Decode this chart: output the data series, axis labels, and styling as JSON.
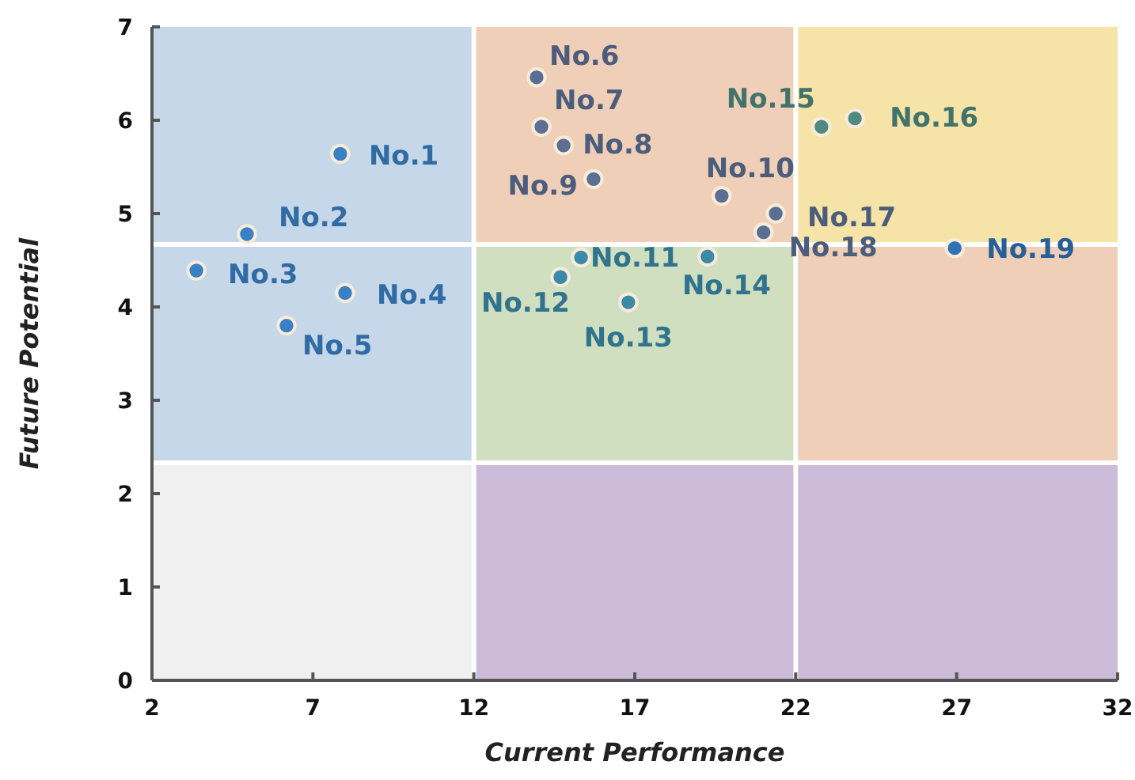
{
  "chart_data": {
    "type": "scatter",
    "xlabel": "Current Performance",
    "ylabel": "Future Potential",
    "x": [
      7.85,
      4.95,
      3.38,
      8.0,
      6.18,
      13.95,
      14.1,
      14.79,
      15.72,
      19.7,
      15.33,
      14.69,
      16.8,
      19.26,
      22.8,
      23.84,
      21.38,
      21.0,
      26.94
    ],
    "values": [
      5.64,
      4.78,
      4.39,
      4.15,
      3.8,
      6.46,
      5.93,
      5.73,
      5.37,
      5.19,
      4.53,
      4.32,
      4.05,
      4.54,
      5.93,
      6.02,
      5.0,
      4.8,
      4.63
    ],
    "colors": [
      "#3a80c4",
      "#3a80c4",
      "#3a80c4",
      "#3a80c4",
      "#3a80c4",
      "#5b6f94",
      "#5b6f94",
      "#5b6f94",
      "#5b6f94",
      "#5b6f94",
      "#3a8aa8",
      "#3a8aa8",
      "#3a8aa8",
      "#3a8aa8",
      "#4f8a80",
      "#4f8a80",
      "#5b6f94",
      "#5b6f94",
      "#2f72b5"
    ],
    "xlim": [
      2,
      32
    ],
    "xticks": [
      2,
      7,
      12,
      17,
      22,
      27,
      32
    ],
    "ylim": [
      0,
      7
    ],
    "yticks": [
      0,
      1,
      2,
      3,
      4,
      5,
      6,
      7
    ],
    "marker": "circle",
    "grid": false,
    "ref_lines": [
      {
        "axis": "x",
        "value": 12,
        "color": "#ffffff"
      },
      {
        "axis": "x",
        "value": 22,
        "color": "#ffffff"
      },
      {
        "axis": "y",
        "value": 2.33,
        "color": "#ffffff"
      },
      {
        "axis": "y",
        "value": 4.67,
        "color": "#ffffff"
      }
    ],
    "annotations": [
      {
        "text": "No.1",
        "x": 7.85,
        "y": 5.64
      },
      {
        "text": "No.2",
        "x": 4.95,
        "y": 4.78
      },
      {
        "text": "No.3",
        "x": 3.38,
        "y": 4.39
      },
      {
        "text": "No.4",
        "x": 8.0,
        "y": 4.15
      },
      {
        "text": "No.5",
        "x": 6.18,
        "y": 3.8
      },
      {
        "text": "No.6",
        "x": 13.95,
        "y": 6.46
      },
      {
        "text": "No.7",
        "x": 14.1,
        "y": 5.93
      },
      {
        "text": "No.8",
        "x": 14.79,
        "y": 5.73
      },
      {
        "text": "No.9",
        "x": 15.72,
        "y": 5.37
      },
      {
        "text": "No.10",
        "x": 19.7,
        "y": 5.19
      },
      {
        "text": "No.11",
        "x": 15.33,
        "y": 4.53
      },
      {
        "text": "No.12",
        "x": 14.69,
        "y": 4.32
      },
      {
        "text": "No.13",
        "x": 16.8,
        "y": 4.05
      },
      {
        "text": "No.14",
        "x": 19.26,
        "y": 4.54
      },
      {
        "text": "No.15",
        "x": 22.8,
        "y": 5.93
      },
      {
        "text": "No.16",
        "x": 23.84,
        "y": 6.02
      },
      {
        "text": "No.17",
        "x": 21.38,
        "y": 5.0
      },
      {
        "text": "No.18",
        "x": 21.0,
        "y": 4.8
      },
      {
        "text": "No.19",
        "x": 26.94,
        "y": 4.63
      }
    ]
  }
}
